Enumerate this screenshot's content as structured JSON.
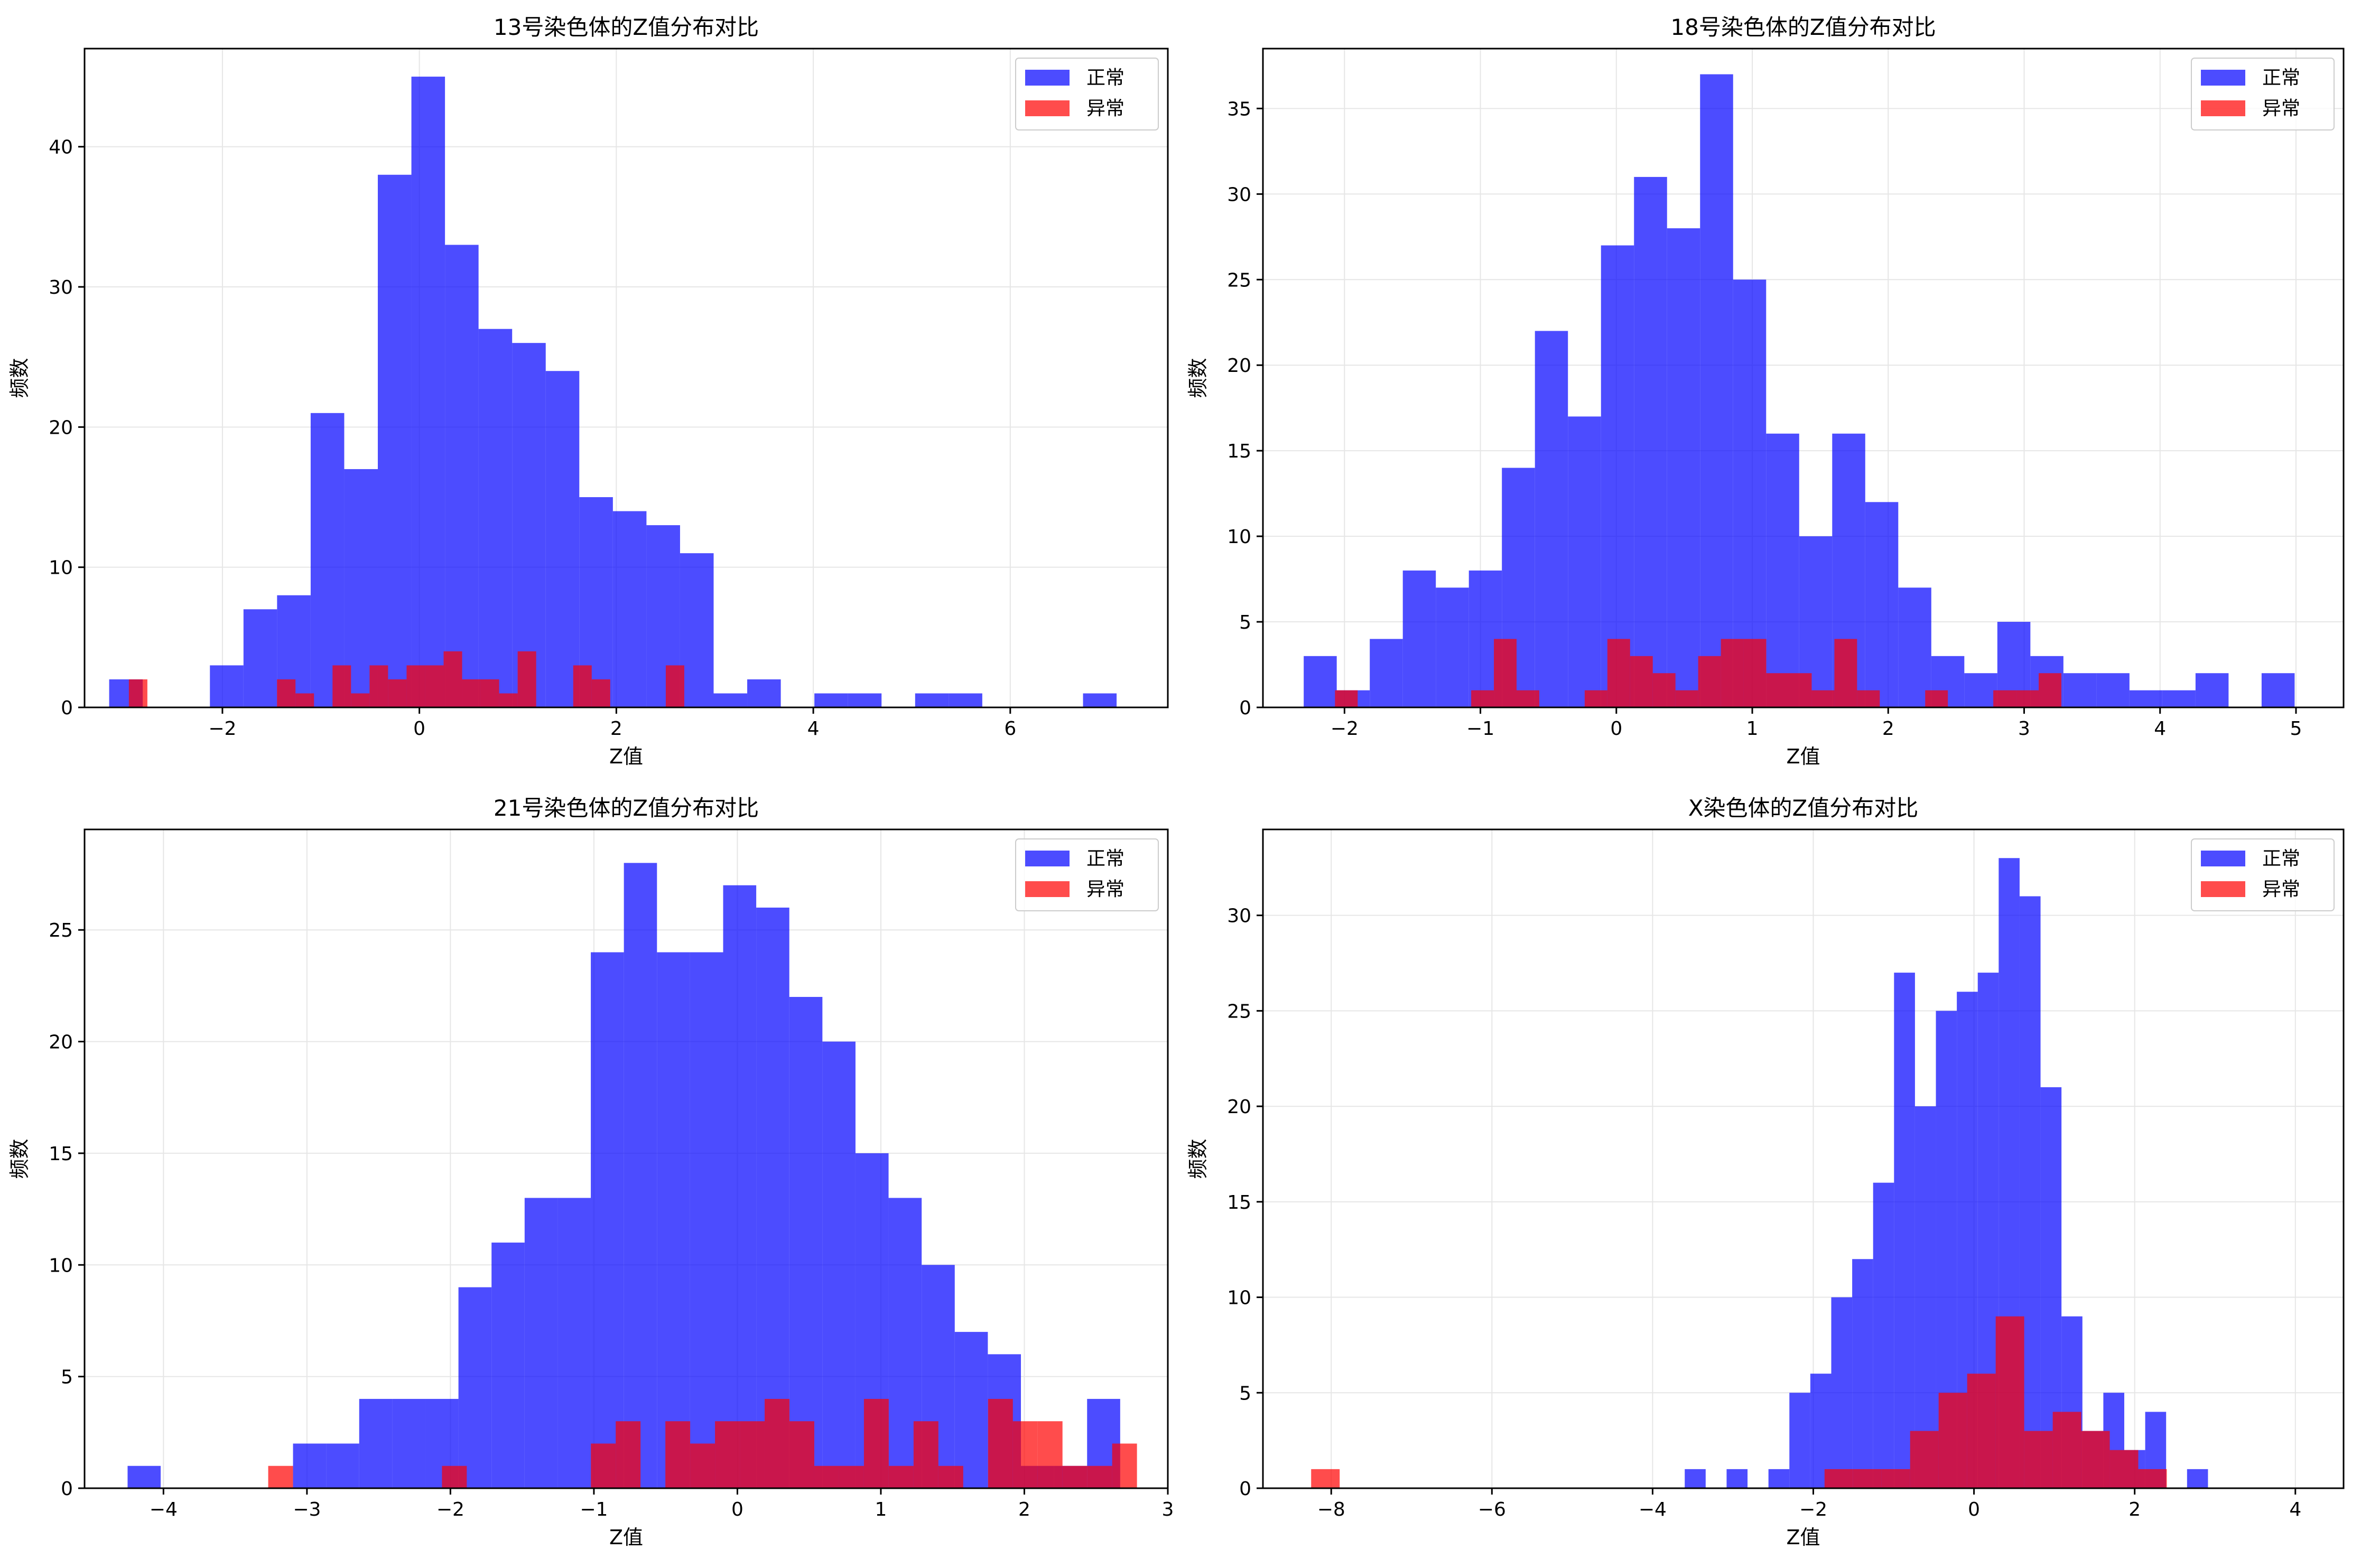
{
  "figure": {
    "colors": {
      "normal": "#0000ff",
      "abnormal": "#ff0000",
      "grid": "#e6e6e6"
    },
    "legend_labels": {
      "normal": "正常",
      "abnormal": "异常"
    }
  },
  "chart_data": [
    {
      "type": "histogram",
      "title": "13号染色体的Z值分布对比",
      "xlabel": "Z值",
      "ylabel": "频数",
      "xlim": [
        -3.4,
        7.6
      ],
      "ylim": [
        0,
        47
      ],
      "xticks": [
        -2,
        0,
        2,
        4,
        6
      ],
      "yticks": [
        0,
        10,
        20,
        30,
        40
      ],
      "grid": true,
      "legend": "top-right",
      "series": [
        {
          "name": "正常",
          "color": "#0000ff",
          "alpha": 0.7,
          "bin_start": -3.15,
          "bin_width": 0.341,
          "counts": [
            2,
            0,
            0,
            3,
            7,
            8,
            21,
            17,
            38,
            45,
            33,
            27,
            26,
            24,
            15,
            14,
            13,
            11,
            1,
            2,
            0,
            1,
            1,
            0,
            1,
            1,
            0,
            0,
            0,
            1
          ]
        },
        {
          "name": "异常",
          "color": "#ff0000",
          "alpha": 0.7,
          "bin_start": -2.95,
          "bin_width": 0.188,
          "counts": [
            2,
            0,
            0,
            0,
            0,
            0,
            0,
            0,
            2,
            1,
            0,
            3,
            1,
            3,
            2,
            3,
            3,
            4,
            2,
            2,
            1,
            4,
            0,
            0,
            3,
            2,
            0,
            0,
            0,
            3
          ]
        }
      ]
    },
    {
      "type": "histogram",
      "title": "18号染色体的Z值分布对比",
      "xlabel": "Z值",
      "ylabel": "频数",
      "xlim": [
        -2.6,
        5.35
      ],
      "ylim": [
        0,
        38.5
      ],
      "xticks": [
        -2,
        -1,
        0,
        1,
        2,
        3,
        4,
        5
      ],
      "yticks": [
        0,
        5,
        10,
        15,
        20,
        25,
        30,
        35
      ],
      "grid": true,
      "legend": "top-right",
      "series": [
        {
          "name": "正常",
          "color": "#0000ff",
          "alpha": 0.7,
          "bin_start": -2.3,
          "bin_width": 0.243,
          "counts": [
            3,
            1,
            4,
            8,
            7,
            8,
            14,
            22,
            17,
            27,
            31,
            28,
            37,
            25,
            16,
            10,
            16,
            12,
            7,
            3,
            2,
            5,
            3,
            2,
            2,
            1,
            1,
            2,
            0,
            2
          ]
        },
        {
          "name": "异常",
          "color": "#ff0000",
          "alpha": 0.7,
          "bin_start": -2.07,
          "bin_width": 0.167,
          "counts": [
            1,
            0,
            0,
            0,
            0,
            0,
            1,
            4,
            1,
            0,
            0,
            1,
            4,
            3,
            2,
            1,
            3,
            4,
            4,
            2,
            2,
            1,
            4,
            1,
            0,
            0,
            1,
            0,
            0,
            1,
            1,
            2
          ]
        }
      ]
    },
    {
      "type": "histogram",
      "title": "21号染色体的Z值分布对比",
      "xlabel": "Z值",
      "ylabel": "频数",
      "xlim": [
        -4.55,
        3.0
      ],
      "ylim": [
        0,
        29.5
      ],
      "xticks": [
        -4,
        -3,
        -2,
        -1,
        0,
        1,
        2,
        3
      ],
      "yticks": [
        0,
        5,
        10,
        15,
        20,
        25
      ],
      "grid": true,
      "legend": "top-right",
      "series": [
        {
          "name": "正常",
          "color": "#0000ff",
          "alpha": 0.7,
          "bin_start": -4.25,
          "bin_width": 0.2306,
          "counts": [
            1,
            0,
            0,
            0,
            0,
            2,
            2,
            4,
            4,
            4,
            9,
            11,
            13,
            13,
            24,
            28,
            24,
            24,
            27,
            26,
            22,
            20,
            15,
            13,
            10,
            7,
            6,
            1,
            1,
            4
          ]
        },
        {
          "name": "异常",
          "color": "#ff0000",
          "alpha": 0.7,
          "bin_start": -3.27,
          "bin_width": 0.173,
          "counts": [
            1,
            0,
            0,
            0,
            0,
            0,
            0,
            1,
            0,
            0,
            0,
            0,
            0,
            2,
            3,
            0,
            3,
            2,
            3,
            3,
            4,
            3,
            1,
            1,
            4,
            1,
            3,
            1,
            0,
            4,
            3,
            3,
            1,
            1,
            2
          ]
        }
      ]
    },
    {
      "type": "histogram",
      "title": "X染色体的Z值分布对比",
      "xlabel": "Z值",
      "ylabel": "频数",
      "xlim": [
        -8.85,
        4.6
      ],
      "ylim": [
        0,
        34.5
      ],
      "xticks": [
        -8,
        -6,
        -4,
        -2,
        0,
        2,
        4
      ],
      "yticks": [
        0,
        5,
        10,
        15,
        20,
        25,
        30
      ],
      "grid": true,
      "legend": "top-right",
      "series": [
        {
          "name": "正常",
          "color": "#0000ff",
          "alpha": 0.7,
          "bin_start": -3.6,
          "bin_width": 0.2605,
          "counts": [
            1,
            0,
            1,
            0,
            1,
            5,
            6,
            10,
            12,
            16,
            27,
            20,
            25,
            26,
            27,
            33,
            31,
            21,
            9,
            3,
            5,
            2,
            4,
            0,
            1
          ]
        },
        {
          "name": "异常",
          "color": "#ff0000",
          "alpha": 0.7,
          "bin_start": -8.25,
          "bin_width": 0.355,
          "counts": [
            1,
            0,
            0,
            0,
            0,
            0,
            0,
            0,
            0,
            0,
            0,
            0,
            0,
            0,
            0,
            0,
            0,
            0,
            1,
            1,
            1,
            3,
            5,
            6,
            9,
            3,
            4,
            3,
            2,
            1
          ]
        }
      ]
    }
  ]
}
